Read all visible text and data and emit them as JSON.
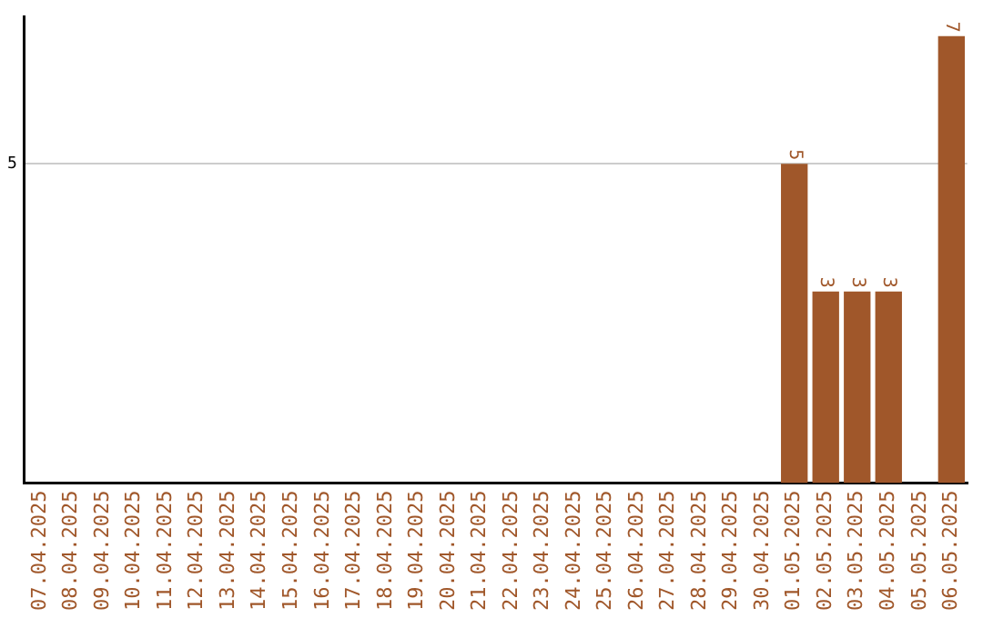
{
  "chart_data": {
    "type": "bar",
    "categories": [
      "07.04.2025",
      "08.04.2025",
      "09.04.2025",
      "10.04.2025",
      "11.04.2025",
      "12.04.2025",
      "13.04.2025",
      "14.04.2025",
      "15.04.2025",
      "16.04.2025",
      "17.04.2025",
      "18.04.2025",
      "19.04.2025",
      "20.04.2025",
      "21.04.2025",
      "22.04.2025",
      "23.04.2025",
      "24.04.2025",
      "25.04.2025",
      "26.04.2025",
      "27.04.2025",
      "28.04.2025",
      "29.04.2025",
      "30.04.2025",
      "01.05.2025",
      "02.05.2025",
      "03.05.2025",
      "04.05.2025",
      "05.05.2025",
      "06.05.2025"
    ],
    "values": [
      null,
      null,
      null,
      null,
      null,
      null,
      null,
      null,
      null,
      null,
      null,
      null,
      null,
      null,
      null,
      null,
      null,
      null,
      null,
      null,
      null,
      null,
      null,
      null,
      5,
      3,
      3,
      3,
      null,
      7
    ],
    "color": "#a0572a",
    "ylim": [
      0,
      7.3
    ],
    "yticks": [
      5
    ],
    "grid": "y",
    "legend": false,
    "data_labels": true
  }
}
